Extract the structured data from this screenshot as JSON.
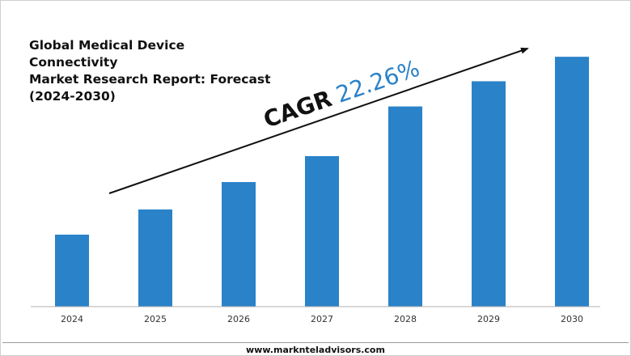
{
  "title_lines": [
    "Global Medical Device Connectivity",
    "Market Research Report: Forecast",
    "(2024-2030)"
  ],
  "annotation": {
    "cagr_label": "CAGR",
    "cagr_value": "22.26%"
  },
  "footer": {
    "url": "www.marknteladvisors.com"
  },
  "colors": {
    "bar": "#2a82c8",
    "cagr_value": "#2a82c8",
    "text": "#111111",
    "axis": "#b0b0b0"
  },
  "chart_data": {
    "type": "bar",
    "title": "Global Medical Device Connectivity Market Research Report: Forecast (2024-2030)",
    "categories": [
      "2024",
      "2025",
      "2026",
      "2027",
      "2028",
      "2029",
      "2030"
    ],
    "values": [
      1.0,
      1.35,
      1.73,
      2.09,
      2.78,
      3.13,
      3.47
    ],
    "value_unit": "relative (no y-axis shown)",
    "xlabel": "",
    "ylabel": "",
    "ylim": [
      0,
      3.6
    ],
    "y_axis_visible": false,
    "grid": false,
    "legend": "none",
    "trend_arrow": true
  }
}
